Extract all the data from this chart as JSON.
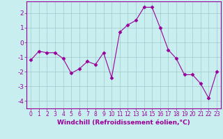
{
  "x": [
    0,
    1,
    2,
    3,
    4,
    5,
    6,
    7,
    8,
    9,
    10,
    11,
    12,
    13,
    14,
    15,
    16,
    17,
    18,
    19,
    20,
    21,
    22,
    23
  ],
  "y": [
    -1.2,
    -0.6,
    -0.7,
    -0.7,
    -1.1,
    -2.1,
    -1.8,
    -1.3,
    -1.5,
    -0.7,
    -2.4,
    0.7,
    1.2,
    1.5,
    2.4,
    2.4,
    1.0,
    -0.5,
    -1.1,
    -2.2,
    -2.2,
    -2.8,
    -3.8,
    -2.0
  ],
  "line_color": "#990099",
  "marker": "D",
  "marker_size": 2.5,
  "bg_color": "#c8eef0",
  "grid_color": "#a0c8cc",
  "xlabel": "Windchill (Refroidissement éolien,°C)",
  "xlabel_color": "#990099",
  "tick_color": "#990099",
  "ylim": [
    -4.5,
    2.8
  ],
  "xlim": [
    -0.5,
    23.5
  ],
  "yticks": [
    -4,
    -3,
    -2,
    -1,
    0,
    1,
    2
  ],
  "xticks": [
    0,
    1,
    2,
    3,
    4,
    5,
    6,
    7,
    8,
    9,
    10,
    11,
    12,
    13,
    14,
    15,
    16,
    17,
    18,
    19,
    20,
    21,
    22,
    23
  ],
  "spine_color": "#990099"
}
